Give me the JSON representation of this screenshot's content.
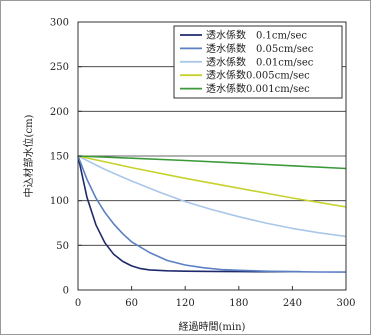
{
  "chart_data": {
    "type": "line",
    "xlabel": "経過時間(min)",
    "ylabel": "中込材部水位(cm)",
    "xlim": [
      0,
      300
    ],
    "ylim": [
      0,
      300
    ],
    "xticks": [
      "0",
      "60",
      "120",
      "180",
      "240",
      "300"
    ],
    "yticks": [
      "0",
      "50",
      "100",
      "150",
      "200",
      "250",
      "300"
    ],
    "grid": "horizontal",
    "legend_position": "top-right",
    "series": [
      {
        "name": "透水係数　0.1cm/sec",
        "color": "#1f2a6b",
        "x": [
          0,
          10,
          20,
          30,
          40,
          50,
          60,
          70,
          80,
          100,
          120,
          150,
          180,
          210,
          240,
          250
        ],
        "y": [
          150,
          104,
          73,
          53,
          40,
          32,
          27,
          24,
          22.5,
          21.5,
          21,
          20.8,
          20.6,
          20.5,
          20.5,
          20.5
        ]
      },
      {
        "name": "透水係数　0.05cm/sec",
        "color": "#5b7fc4",
        "x": [
          0,
          10,
          20,
          30,
          40,
          50,
          60,
          80,
          100,
          120,
          140,
          160,
          180,
          210,
          240,
          270,
          300
        ],
        "y": [
          150,
          124,
          103,
          87,
          74,
          63,
          54,
          42,
          33,
          28,
          25,
          23,
          22,
          21,
          20.5,
          20.2,
          20
        ]
      },
      {
        "name": "透水係数　0.01cm/sec",
        "color": "#a9c7e8",
        "x": [
          0,
          30,
          60,
          90,
          120,
          150,
          180,
          210,
          240,
          270,
          300
        ],
        "y": [
          150,
          135,
          122,
          110,
          99,
          90,
          82,
          75,
          69,
          64,
          60
        ]
      },
      {
        "name": "透水係数0.005cm/sec",
        "color": "#c6d22e",
        "x": [
          0,
          60,
          120,
          180,
          240,
          300
        ],
        "y": [
          150,
          137,
          125,
          114,
          103,
          93
        ]
      },
      {
        "name": "透水係数0.001cm/sec",
        "color": "#3a9a3a",
        "x": [
          0,
          60,
          120,
          180,
          240,
          300
        ],
        "y": [
          150,
          147.5,
          145,
          142,
          139,
          136
        ]
      }
    ]
  }
}
